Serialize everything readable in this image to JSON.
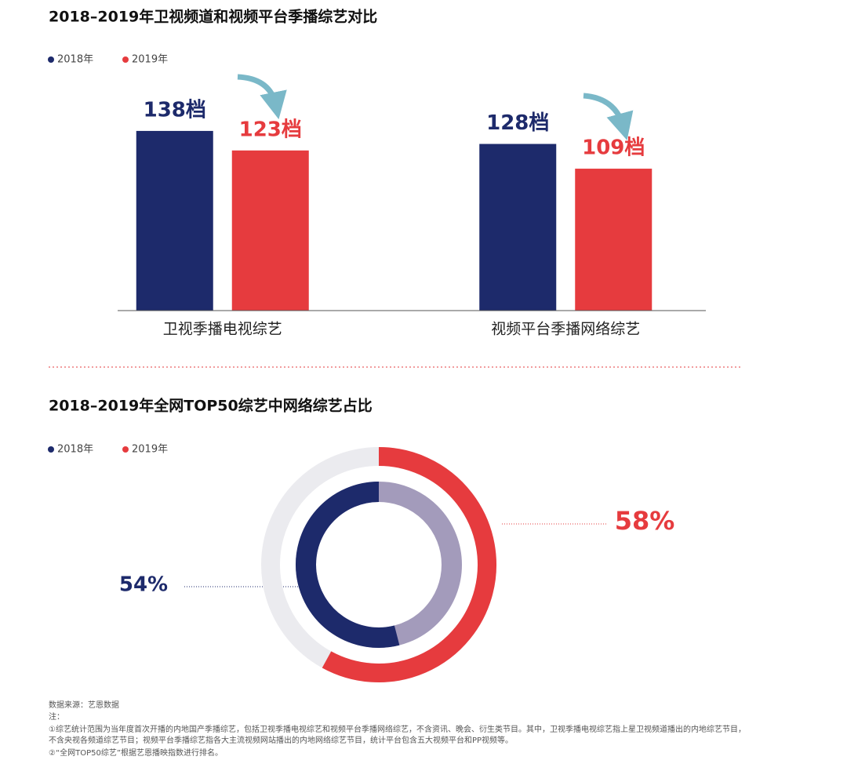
{
  "chart_data": [
    {
      "type": "bar",
      "title": "2018–2019年卫视频道和视频平台季播综艺对比",
      "categories": [
        "卫视季播电视综艺",
        "视频平台季播网络综艺"
      ],
      "series": [
        {
          "name": "2018年",
          "color": "#1d2a6b",
          "values": [
            138,
            128
          ],
          "value_labels": [
            "138档",
            "128档"
          ]
        },
        {
          "name": "2019年",
          "color": "#e63b3e",
          "values": [
            123,
            109
          ],
          "value_labels": [
            "123档",
            "109档"
          ]
        }
      ],
      "ylim": [
        0,
        150
      ]
    },
    {
      "type": "donut",
      "title": "2018–2019年全网TOP50综艺中网络综艺占比",
      "series": [
        {
          "name": "2018年",
          "color": "#1d2a6b",
          "rest_color": "#a39bbb",
          "values": [
            54
          ],
          "value_labels": [
            "54%"
          ]
        },
        {
          "name": "2019年",
          "color": "#e63b3e",
          "rest_color": "#ebebef",
          "values": [
            58
          ],
          "value_labels": [
            "58%"
          ]
        }
      ]
    }
  ],
  "footer": {
    "source": "数据来源：艺恩数据",
    "notes_label": "注：",
    "notes": [
      "①综艺统计范围为当年度首次开播的内地国产季播综艺，包括卫视季播电视综艺和视频平台季播网络综艺，不含资讯、晚会、衍生类节目。其中，卫视季播电视综艺指上星卫视频道播出的内地综艺节目，不含央视各频道综艺节目；视频平台季播综艺指各大主流视频网站播出的内地网络综艺节目，统计平台包含五大视频平台和PP视频等。",
      "②“全网TOP50综艺”根据艺恩播映指数进行排名。"
    ]
  }
}
